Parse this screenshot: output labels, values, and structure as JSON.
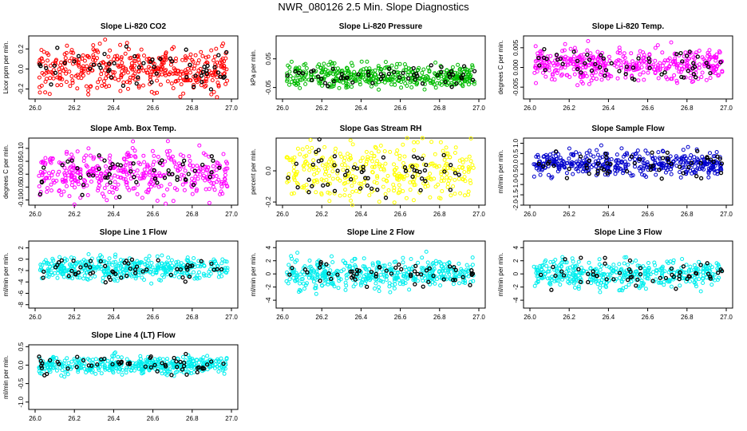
{
  "title": "NWR_080126  2.5 Min. Slope Diagnostics",
  "chart_data": [
    {
      "type": "scatter",
      "title": "Slope Li-820 CO2",
      "ylabel": "Licor ppm per min.",
      "color": "#ff0000",
      "xlim": [
        26.0,
        27.0
      ],
      "ylim": [
        -0.3,
        0.33
      ],
      "yticks": [
        "-0.2",
        "0.0",
        "0.2"
      ],
      "ytick_values": [
        -0.2,
        0.0,
        0.2
      ],
      "xticks": [
        "26.0",
        "26.2",
        "26.4",
        "26.6",
        "26.8",
        "27.0"
      ],
      "main_count": 420,
      "main_spread": 0.11,
      "main_center": 0.0,
      "outlier_count": 55,
      "outlier_spread": 0.1
    },
    {
      "type": "scatter",
      "title": "Slope Li-820 Pressure",
      "ylabel": "kPa per min.",
      "color": "#00bb00",
      "xlim": [
        26.0,
        27.0
      ],
      "ylim": [
        -0.09,
        0.13
      ],
      "yticks": [
        "-0.05",
        "0.05"
      ],
      "ytick_values": [
        -0.05,
        0.05
      ],
      "xticks": [
        "26.0",
        "26.2",
        "26.4",
        "26.6",
        "26.8",
        "27.0"
      ],
      "main_count": 420,
      "main_spread": 0.02,
      "main_center": -0.01,
      "outlier_count": 55,
      "outlier_spread": 0.022
    },
    {
      "type": "scatter",
      "title": "Slope Li-820 Temp.",
      "ylabel": "degrees C per min.",
      "color": "#ff00ff",
      "xlim": [
        26.0,
        27.0
      ],
      "ylim": [
        -0.008,
        0.008
      ],
      "yticks": [
        "-0.005",
        "0.000",
        "0.005"
      ],
      "ytick_values": [
        -0.005,
        0.0,
        0.005
      ],
      "xticks": [
        "26.0",
        "26.2",
        "26.4",
        "26.6",
        "26.8",
        "27.0"
      ],
      "main_count": 420,
      "main_spread": 0.002,
      "main_center": 0.0008,
      "outlier_count": 55,
      "outlier_spread": 0.002
    },
    {
      "type": "scatter",
      "title": "Slope Amb. Box Temp.",
      "ylabel": "degrees C per min.",
      "color": "#ff00ff",
      "xlim": [
        26.0,
        27.0
      ],
      "ylim": [
        -0.12,
        0.14
      ],
      "yticks": [
        "-0.10",
        "-0.05",
        "0.00",
        "0.05",
        "0.10"
      ],
      "ytick_values": [
        -0.1,
        -0.05,
        0.0,
        0.05,
        0.1
      ],
      "xticks": [
        "26.0",
        "26.2",
        "26.4",
        "26.6",
        "26.8",
        "27.0"
      ],
      "main_count": 420,
      "main_spread": 0.045,
      "main_center": 0.0,
      "outlier_count": 55,
      "outlier_spread": 0.04
    },
    {
      "type": "scatter",
      "title": "Slope Gas Stream RH",
      "ylabel": "percent per min.",
      "color": "#ffff00",
      "xlim": [
        26.0,
        27.0
      ],
      "ylim": [
        -0.22,
        0.21
      ],
      "yticks": [
        "-0.2",
        "0.0"
      ],
      "ytick_values": [
        -0.2,
        0.0
      ],
      "xticks": [
        "26.0",
        "26.2",
        "26.4",
        "26.6",
        "26.8",
        "27.0"
      ],
      "main_count": 360,
      "main_spread": 0.09,
      "main_center": 0.0,
      "outlier_count": 55,
      "outlier_spread": 0.09
    },
    {
      "type": "scatter",
      "title": "Slope Sample Flow",
      "ylabel": "ml/min per min.",
      "color": "#0000cc",
      "xlim": [
        26.0,
        27.0
      ],
      "ylim": [
        -2.0,
        1.25
      ],
      "yticks": [
        "-2.0",
        "-1.5",
        "-1.0",
        "-0.5",
        "0.0",
        "0.5",
        "1.0"
      ],
      "ytick_values": [
        -2.0,
        -1.5,
        -1.0,
        -0.5,
        0.0,
        0.5,
        1.0
      ],
      "xticks": [
        "26.0",
        "26.2",
        "26.4",
        "26.6",
        "26.8",
        "27.0"
      ],
      "main_count": 420,
      "main_spread": 0.3,
      "main_center": 0.0,
      "outlier_count": 55,
      "outlier_spread": 0.3
    },
    {
      "type": "scatter",
      "title": "Slope Line 1 Flow",
      "ylabel": "ml/min per min.",
      "color": "#00eeee",
      "xlim": [
        26.0,
        27.0
      ],
      "ylim": [
        -8.6,
        3.2
      ],
      "yticks": [
        "-8",
        "-6",
        "-4",
        "-2",
        "0",
        "2"
      ],
      "ytick_values": [
        -8,
        -6,
        -4,
        -2,
        0,
        2
      ],
      "xticks": [
        "26.0",
        "26.2",
        "26.4",
        "26.6",
        "26.8",
        "27.0"
      ],
      "main_count": 420,
      "main_spread": 1.0,
      "main_center": -1.6,
      "outlier_count": 55,
      "outlier_spread": 1.2
    },
    {
      "type": "scatter",
      "title": "Slope Line 2 Flow",
      "ylabel": "ml/min per min.",
      "color": "#00eeee",
      "xlim": [
        26.0,
        27.0
      ],
      "ylim": [
        -5.2,
        5.0
      ],
      "yticks": [
        "-4",
        "-2",
        "0",
        "2",
        "4"
      ],
      "ytick_values": [
        -4,
        -2,
        0,
        2,
        4
      ],
      "xticks": [
        "26.0",
        "26.2",
        "26.4",
        "26.6",
        "26.8",
        "27.0"
      ],
      "main_count": 420,
      "main_spread": 1.1,
      "main_center": 0.0,
      "outlier_count": 55,
      "outlier_spread": 1.0
    },
    {
      "type": "scatter",
      "title": "Slope Line 3 Flow",
      "ylabel": "ml/min per min.",
      "color": "#00eeee",
      "xlim": [
        26.0,
        27.0
      ],
      "ylim": [
        -5.2,
        5.0
      ],
      "yticks": [
        "-4",
        "-2",
        "0",
        "2",
        "4"
      ],
      "ytick_values": [
        -4,
        -2,
        0,
        2,
        4
      ],
      "xticks": [
        "26.0",
        "26.2",
        "26.4",
        "26.6",
        "26.8",
        "27.0"
      ],
      "main_count": 420,
      "main_spread": 1.1,
      "main_center": 0.0,
      "outlier_count": 55,
      "outlier_spread": 1.0
    },
    {
      "type": "scatter",
      "title": "Slope Line 4 (LT) Flow",
      "ylabel": "ml/min per min.",
      "color": "#00eeee",
      "xlim": [
        26.0,
        27.0
      ],
      "ylim": [
        -1.2,
        0.55
      ],
      "yticks": [
        "-1.0",
        "-0.5",
        "0.0",
        "0.5"
      ],
      "ytick_values": [
        -1.0,
        -0.5,
        0.0,
        0.5
      ],
      "xticks": [
        "26.0",
        "26.2",
        "26.4",
        "26.6",
        "26.8",
        "27.0"
      ],
      "main_count": 420,
      "main_spread": 0.12,
      "main_center": 0.0,
      "outlier_count": 55,
      "outlier_spread": 0.13
    }
  ]
}
